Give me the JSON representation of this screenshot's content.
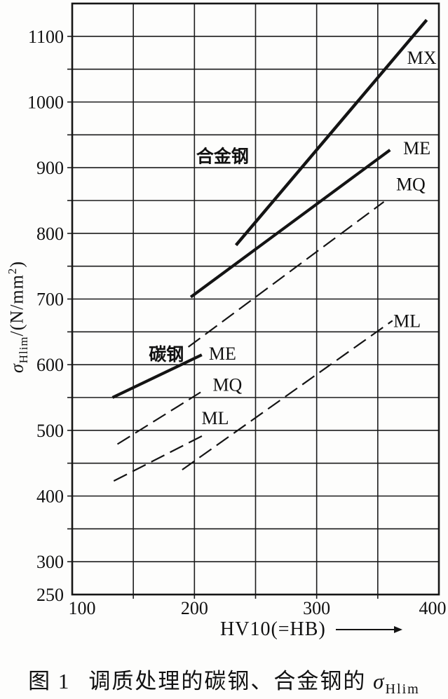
{
  "figure": {
    "caption_label": "图 1",
    "caption_text": "调质处理的碳钢、合金钢的",
    "caption_symbol": "σ",
    "caption_symbol_sub": "Hlim"
  },
  "chart_data": {
    "type": "line",
    "title": "",
    "xlabel": "HV10(=HB)",
    "ylabel_symbol": "σ",
    "ylabel_symbol_sub": "Hlim",
    "ylabel_unit_pre": "/(N/mm",
    "ylabel_unit_sup": "2",
    "ylabel_unit_post": ")",
    "xlim": [
      100,
      400
    ],
    "ylim": [
      250,
      1150
    ],
    "x_ticks": [
      100,
      200,
      300,
      400
    ],
    "y_ticks": [
      250,
      300,
      400,
      500,
      600,
      700,
      800,
      900,
      1000,
      1100
    ],
    "grid_step_x": 50,
    "grid_step_y": 50,
    "grid": true,
    "legend_position": "inline-labels",
    "axis_color": "#141414",
    "series": [
      {
        "name": "alloy-MX",
        "group": "合金钢",
        "grade": "MX",
        "line_style": "solid",
        "stroke_width": 4.4,
        "points": [
          [
            234,
            782
          ],
          [
            390,
            1125
          ]
        ]
      },
      {
        "name": "alloy-ME",
        "group": "合金钢",
        "grade": "ME",
        "line_style": "solid",
        "stroke_width": 4.2,
        "points": [
          [
            197,
            703
          ],
          [
            360,
            927
          ]
        ]
      },
      {
        "name": "alloy-MQ",
        "group": "合金钢",
        "grade": "MQ",
        "line_style": "dashed",
        "stroke_width": 2.2,
        "points": [
          [
            195,
            627
          ],
          [
            355,
            848
          ]
        ]
      },
      {
        "name": "alloy-ML",
        "group": "合金钢",
        "grade": "ML",
        "line_style": "dashed",
        "stroke_width": 2.2,
        "points": [
          [
            190,
            440
          ],
          [
            362,
            667
          ]
        ]
      },
      {
        "name": "carbon-ME",
        "group": "碳钢",
        "grade": "ME",
        "line_style": "solid",
        "stroke_width": 4.2,
        "points": [
          [
            133,
            550
          ],
          [
            206,
            615
          ]
        ]
      },
      {
        "name": "carbon-MQ",
        "group": "碳钢",
        "grade": "MQ",
        "line_style": "dashed",
        "stroke_width": 2.2,
        "points": [
          [
            137,
            479
          ],
          [
            205,
            558
          ]
        ]
      },
      {
        "name": "carbon-ML",
        "group": "碳钢",
        "grade": "ML",
        "line_style": "dashed",
        "stroke_width": 2.2,
        "points": [
          [
            134,
            423
          ],
          [
            210,
            495
          ]
        ]
      }
    ],
    "annotations": [
      {
        "name": "alloy-group-label",
        "text": "合金钢",
        "x": 223,
        "y": 918,
        "bold": true,
        "font_size": 25
      },
      {
        "name": "carbon-group-label",
        "text": "碳钢",
        "x": 177,
        "y": 616,
        "bold": true,
        "font_size": 25
      },
      {
        "name": "alloy-mx-label",
        "text": "MX",
        "x": 386,
        "y": 1068,
        "bold": false,
        "font_size": 26
      },
      {
        "name": "alloy-me-label",
        "text": "ME",
        "x": 382,
        "y": 930,
        "bold": false,
        "font_size": 26
      },
      {
        "name": "alloy-mq-label",
        "text": "MQ",
        "x": 377,
        "y": 875,
        "bold": false,
        "font_size": 26
      },
      {
        "name": "alloy-ml-label",
        "text": "ML",
        "x": 374,
        "y": 667,
        "bold": false,
        "font_size": 26
      },
      {
        "name": "carbon-me-label",
        "text": "ME",
        "x": 223,
        "y": 617,
        "bold": false,
        "font_size": 26
      },
      {
        "name": "carbon-mq-label",
        "text": "MQ",
        "x": 227,
        "y": 570,
        "bold": false,
        "font_size": 26
      },
      {
        "name": "carbon-ml-label",
        "text": "ML",
        "x": 217,
        "y": 519,
        "bold": false,
        "font_size": 26
      }
    ]
  }
}
